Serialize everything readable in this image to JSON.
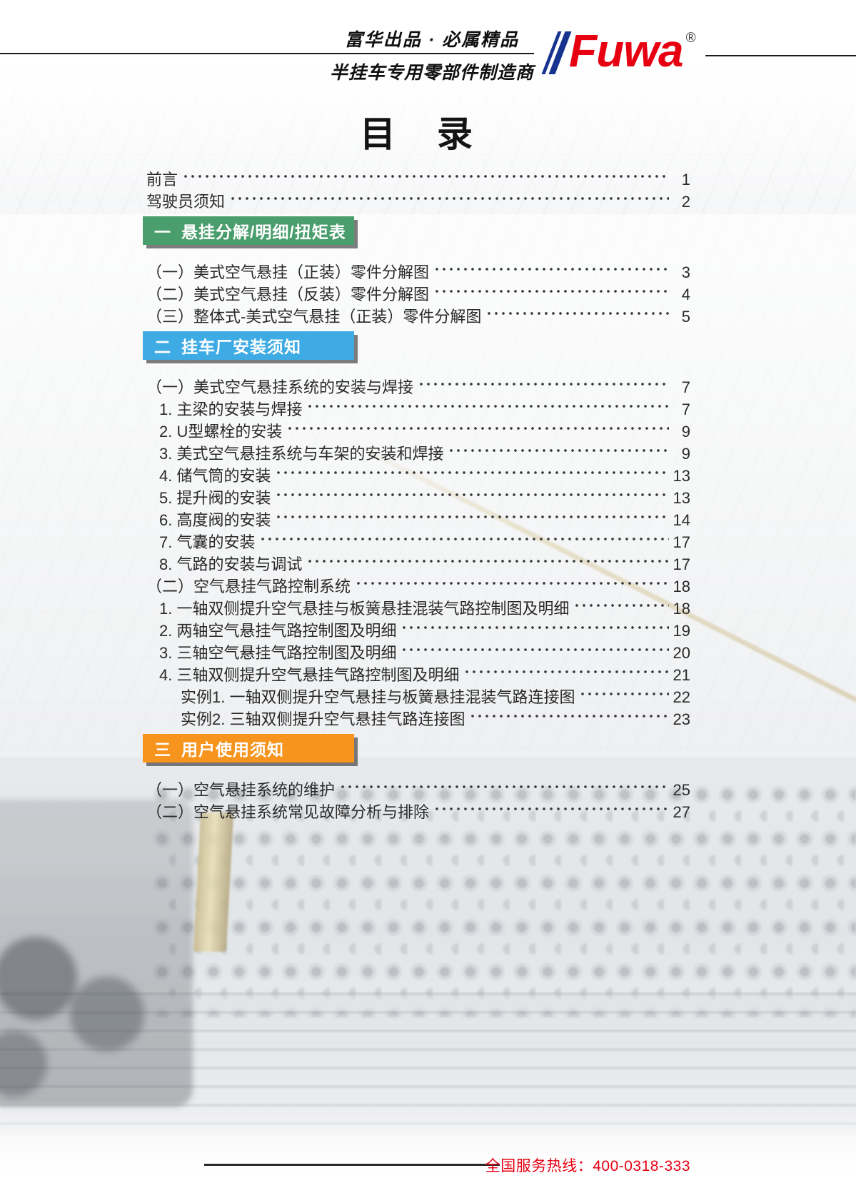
{
  "header": {
    "tagline_top": "富华出品 · 必属精品",
    "tagline_bottom": "半挂车专用零部件制造商",
    "logo": {
      "text": "Fuwa",
      "registered_mark": "®",
      "brand_red": "#e60012",
      "slash_blue": "#16338f"
    }
  },
  "page_title": "目　录",
  "section_colors": {
    "green": "#4a9d6c",
    "blue": "#3fabe4",
    "orange": "#f7941d"
  },
  "toc": {
    "rows": [
      {
        "type": "entry",
        "indent": 0,
        "label": "前言",
        "page": "1"
      },
      {
        "type": "entry",
        "indent": 0,
        "label": "驾驶员须知",
        "page": "2"
      },
      {
        "type": "section",
        "color": "green",
        "number": "一",
        "title": "悬挂分解/明细/扭矩表"
      },
      {
        "type": "entry",
        "indent": 0,
        "label": "（一）美式空气悬挂（正装）零件分解图",
        "page": "3"
      },
      {
        "type": "entry",
        "indent": 0,
        "label": "（二）美式空气悬挂（反装）零件分解图",
        "page": "4"
      },
      {
        "type": "entry",
        "indent": 0,
        "label": "（三）整体式-美式空气悬挂（正装）零件分解图",
        "page": "5"
      },
      {
        "type": "section",
        "color": "blue",
        "number": "二",
        "title": "挂车厂安装须知"
      },
      {
        "type": "entry",
        "indent": 0,
        "label": "（一）美式空气悬挂系统的安装与焊接",
        "page": "7"
      },
      {
        "type": "entry",
        "indent": 1,
        "label": "1. 主梁的安装与焊接",
        "page": "7"
      },
      {
        "type": "entry",
        "indent": 1,
        "label": "2. U型螺栓的安装",
        "page": "9"
      },
      {
        "type": "entry",
        "indent": 1,
        "label": "3. 美式空气悬挂系统与车架的安装和焊接",
        "page": "9"
      },
      {
        "type": "entry",
        "indent": 1,
        "label": "4. 储气筒的安装",
        "page": "13"
      },
      {
        "type": "entry",
        "indent": 1,
        "label": "5. 提升阀的安装",
        "page": "13"
      },
      {
        "type": "entry",
        "indent": 1,
        "label": "6. 高度阀的安装",
        "page": "14"
      },
      {
        "type": "entry",
        "indent": 1,
        "label": "7. 气囊的安装",
        "page": "17"
      },
      {
        "type": "entry",
        "indent": 1,
        "label": "8. 气路的安装与调试",
        "page": "17"
      },
      {
        "type": "entry",
        "indent": 0,
        "label": "（二）空气悬挂气路控制系统",
        "page": "18"
      },
      {
        "type": "entry",
        "indent": 1,
        "label": "1. 一轴双侧提升空气悬挂与板簧悬挂混装气路控制图及明细",
        "page": "18"
      },
      {
        "type": "entry",
        "indent": 1,
        "label": "2. 两轴空气悬挂气路控制图及明细",
        "page": "19"
      },
      {
        "type": "entry",
        "indent": 1,
        "label": "3. 三轴空气悬挂气路控制图及明细",
        "page": "20"
      },
      {
        "type": "entry",
        "indent": 1,
        "label": "4. 三轴双侧提升空气悬挂气路控制图及明细",
        "page": "21"
      },
      {
        "type": "entry",
        "indent": 2,
        "label": "实例1. 一轴双侧提升空气悬挂与板簧悬挂混装气路连接图",
        "page": "22"
      },
      {
        "type": "entry",
        "indent": 2,
        "label": "实例2. 三轴双侧提升空气悬挂气路连接图",
        "page": "23"
      },
      {
        "type": "section",
        "color": "orange",
        "number": "三",
        "title": "用户使用须知"
      },
      {
        "type": "entry",
        "indent": 0,
        "label": "（一）空气悬挂系统的维护",
        "page": "25"
      },
      {
        "type": "entry",
        "indent": 0,
        "label": "（二）空气悬挂系统常见故障分析与排除",
        "page": "27"
      }
    ]
  },
  "footer": {
    "hotline": "全国服务热线：400-0318-333",
    "hotline_color": "#e60012"
  }
}
